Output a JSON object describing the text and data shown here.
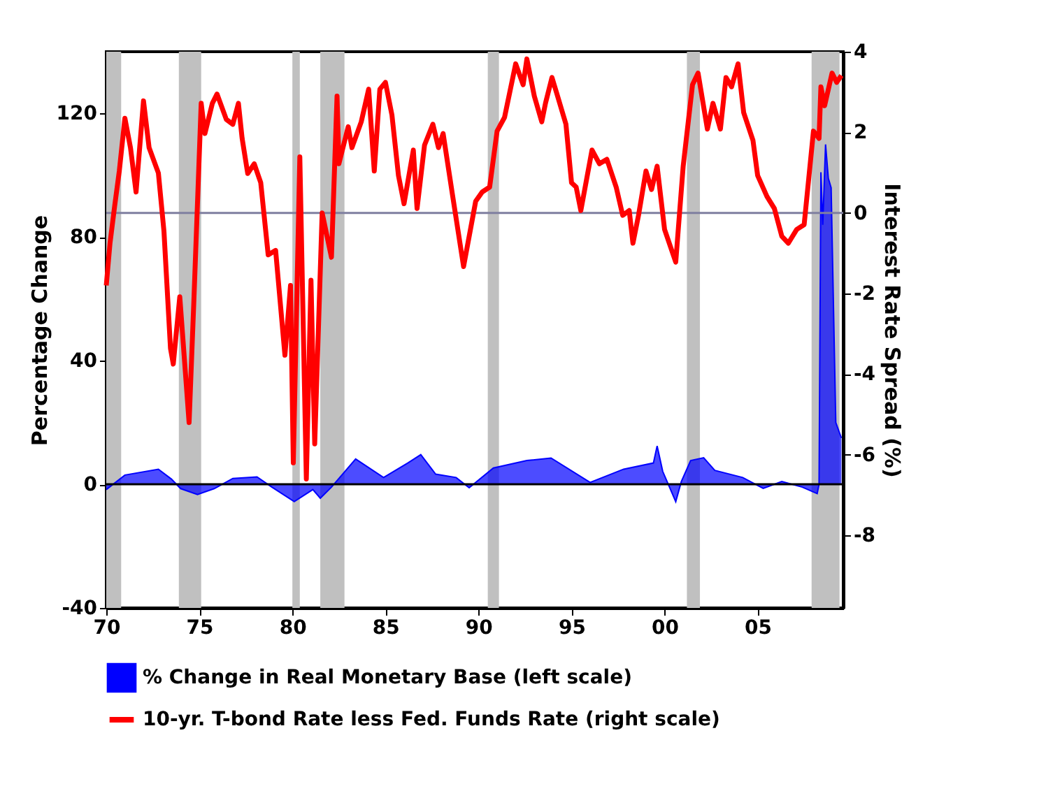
{
  "chart_data": {
    "type": "area",
    "xlabel": null,
    "ylabel": "Percentage Change",
    "y2label": "Interest Rate Spread (%)",
    "xlim": [
      1970,
      2009.6
    ],
    "xticks": [
      {
        "value": 1970,
        "label": "70"
      },
      {
        "value": 1975,
        "label": "75"
      },
      {
        "value": 1980,
        "label": "80"
      },
      {
        "value": 1985,
        "label": "85"
      },
      {
        "value": 1990,
        "label": "90"
      },
      {
        "value": 1995,
        "label": "95"
      },
      {
        "value": 2000,
        "label": "00"
      },
      {
        "value": 2005,
        "label": "05"
      }
    ],
    "ylim": [
      -40,
      140
    ],
    "yticks": [
      -40,
      0,
      40,
      80,
      120
    ],
    "y2lim": [
      -9.8,
      4
    ],
    "y2ticks": [
      -8,
      -6,
      -4,
      -2,
      0,
      2,
      4
    ],
    "series": [
      {
        "name": "% Change in Real Monetary Base (left scale)",
        "color": "#0000ff",
        "x": [
          1970.0,
          1971.0,
          1972.8,
          1973.5,
          1974.0,
          1974.9,
          1975.8,
          1976.8,
          1978.1,
          1978.9,
          1980.1,
          1981.1,
          1981.5,
          1982.1,
          1983.4,
          1984.9,
          1986.2,
          1986.9,
          1987.7,
          1988.8,
          1989.5,
          1990.8,
          1992.6,
          1993.9,
          1996.0,
          1997.8,
          1999.4,
          1999.6,
          1999.9,
          2000.6,
          2000.9,
          2001.4,
          2002.1,
          2002.7,
          2004.2,
          2005.3,
          2006.3,
          2007.4,
          2008.2,
          2008.3,
          2008.4,
          2008.5,
          2008.65,
          2008.8,
          2008.95,
          2009.2,
          2009.5
        ],
        "values": [
          -1.7,
          3.0,
          4.9,
          1.7,
          -1.4,
          -3.3,
          -1.4,
          1.9,
          2.4,
          -0.9,
          -5.6,
          -1.7,
          -4.5,
          -0.9,
          8.2,
          2.2,
          6.9,
          9.6,
          3.3,
          2.2,
          -1.1,
          5.3,
          7.7,
          8.5,
          0.6,
          4.9,
          6.9,
          12.4,
          4.2,
          -5.6,
          0.9,
          7.7,
          8.6,
          4.5,
          2.2,
          -1.3,
          0.9,
          -0.9,
          -3.0,
          0,
          101,
          84,
          110,
          99,
          96,
          20,
          15
        ]
      },
      {
        "name": "10-yr. T-bond Rate less Fed. Funds Rate (right scale)",
        "type": "line",
        "axis": "y2",
        "color": "#ff0000",
        "x": [
          1970.0,
          1970.2,
          1970.45,
          1970.7,
          1971.0,
          1971.3,
          1971.6,
          1972.0,
          1972.3,
          1972.8,
          1973.1,
          1973.45,
          1973.6,
          1973.95,
          1974.45,
          1974.7,
          1975.1,
          1975.3,
          1975.7,
          1975.95,
          1976.45,
          1976.8,
          1977.1,
          1977.3,
          1977.6,
          1977.95,
          1978.3,
          1978.7,
          1979.1,
          1979.6,
          1979.9,
          1980.05,
          1980.4,
          1980.75,
          1981.0,
          1981.2,
          1981.6,
          1982.1,
          1982.4,
          1982.5,
          1983.0,
          1983.2,
          1983.7,
          1984.1,
          1984.4,
          1984.7,
          1985.0,
          1985.35,
          1985.7,
          1986.0,
          1986.5,
          1986.7,
          1987.1,
          1987.55,
          1987.85,
          1988.1,
          1988.6,
          1989.2,
          1989.85,
          1990.2,
          1990.6,
          1991.0,
          1991.4,
          1992.0,
          1992.4,
          1992.6,
          1993.0,
          1993.4,
          1993.6,
          1993.95,
          1994.25,
          1994.7,
          1995.0,
          1995.25,
          1995.5,
          1996.1,
          1996.5,
          1996.9,
          1997.4,
          1997.75,
          1998.1,
          1998.3,
          1998.6,
          1999.0,
          1999.3,
          1999.6,
          2000.0,
          2000.6,
          2001.0,
          2001.5,
          2001.8,
          2002.3,
          2002.6,
          2003.0,
          2003.3,
          2003.6,
          2003.95,
          2004.25,
          2004.75,
          2005.0,
          2005.5,
          2005.9,
          2006.3,
          2006.65,
          2007.1,
          2007.5,
          2008.0,
          2008.3,
          2008.4,
          2008.6,
          2009.0,
          2009.25,
          2009.5
        ],
        "values": [
          -1.8,
          -0.75,
          0.17,
          1.04,
          2.35,
          1.62,
          0.52,
          2.78,
          1.62,
          0.99,
          -0.46,
          -3.36,
          -3.75,
          -2.08,
          -5.2,
          -2.26,
          2.72,
          1.97,
          2.72,
          2.95,
          2.32,
          2.2,
          2.72,
          1.85,
          0.98,
          1.22,
          0.75,
          -1.04,
          -0.93,
          -3.53,
          -1.8,
          -6.2,
          1.39,
          -6.6,
          -1.67,
          -5.73,
          0,
          -1.1,
          2.9,
          1.22,
          2.14,
          1.62,
          2.26,
          3.07,
          1.04,
          3.07,
          3.24,
          2.43,
          0.93,
          0.23,
          1.56,
          0.11,
          1.68,
          2.2,
          1.62,
          1.97,
          0.46,
          -1.33,
          0.29,
          0.52,
          0.64,
          2.03,
          2.37,
          3.7,
          3.18,
          3.82,
          2.9,
          2.26,
          2.72,
          3.36,
          2.9,
          2.2,
          0.75,
          0.64,
          0.06,
          1.56,
          1.22,
          1.33,
          0.64,
          -0.06,
          0.06,
          -0.75,
          -0.06,
          1.04,
          0.58,
          1.16,
          -0.41,
          -1.22,
          1.16,
          3.18,
          3.47,
          2.08,
          2.72,
          2.08,
          3.36,
          3.13,
          3.7,
          2.49,
          1.8,
          0.93,
          0.41,
          0.11,
          -0.58,
          -0.75,
          -0.41,
          -0.29,
          2.03,
          1.85,
          3.13,
          2.66,
          3.47,
          3.24,
          3.41
        ]
      }
    ],
    "ref_lines": [
      {
        "axis": "y",
        "value": 0,
        "color": "#000000"
      },
      {
        "axis": "y2",
        "value": 0,
        "color": "#7f7fa0"
      }
    ],
    "bands": [
      {
        "axis": "x",
        "from": 1970.0,
        "to": 1970.8,
        "color": "#c0c0c0"
      },
      {
        "axis": "x",
        "from": 1973.9,
        "to": 1975.1,
        "color": "#c0c0c0"
      },
      {
        "axis": "x",
        "from": 1980.0,
        "to": 1980.4,
        "color": "#c0c0c0"
      },
      {
        "axis": "x",
        "from": 1981.5,
        "to": 1982.8,
        "color": "#c0c0c0"
      },
      {
        "axis": "x",
        "from": 1990.5,
        "to": 1991.1,
        "color": "#c0c0c0"
      },
      {
        "axis": "x",
        "from": 2001.2,
        "to": 2001.9,
        "color": "#c0c0c0"
      },
      {
        "axis": "x",
        "from": 2007.9,
        "to": 2009.4,
        "color": "#c0c0c0"
      }
    ],
    "grid": false,
    "legend": "bottom"
  }
}
